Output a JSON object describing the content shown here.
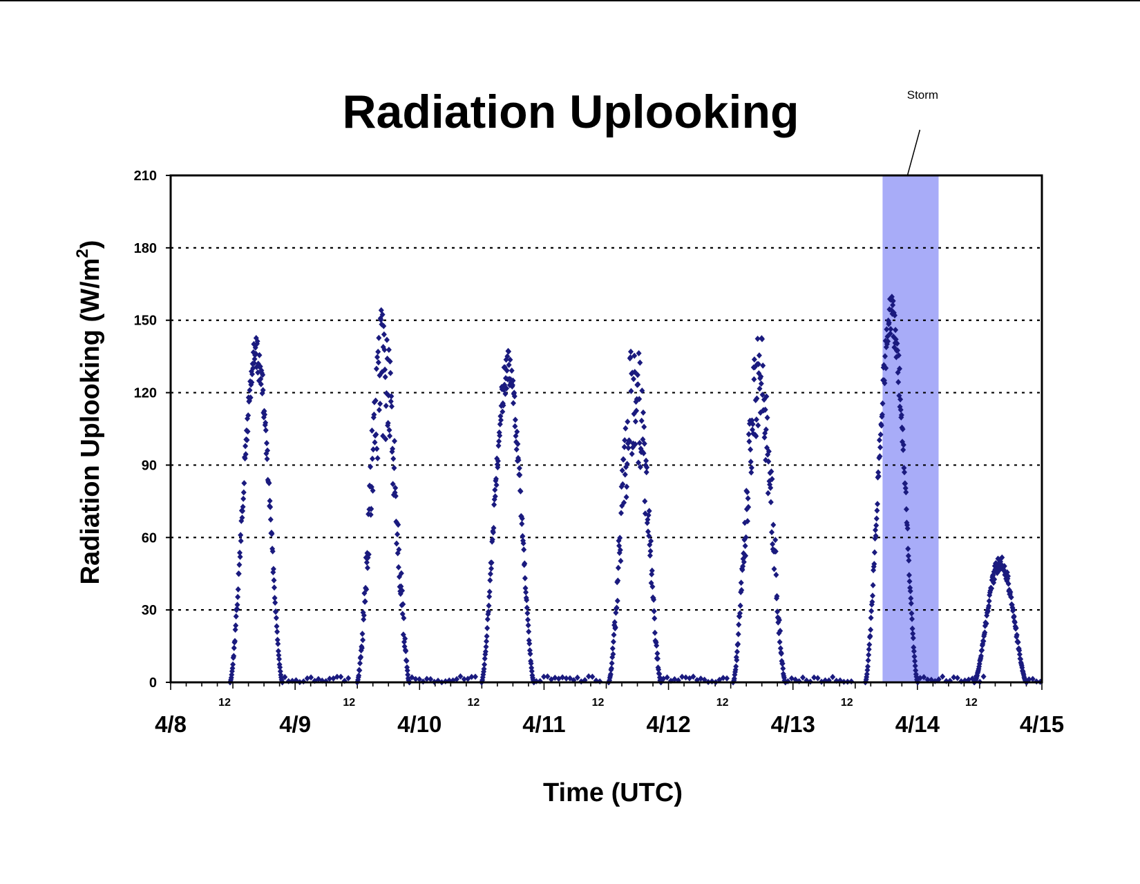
{
  "chart_data": {
    "type": "scatter",
    "title": "Radiation Uplooking",
    "xlabel": "Time (UTC)",
    "ylabel": "Radiation Uplooking (W/m2)",
    "ylabel_base": "Radiation Uplooking (W/m",
    "ylabel_sup": "2",
    "ylabel_close": ")",
    "ylim": [
      0,
      210
    ],
    "y_ticks": [
      "0",
      "30",
      "60",
      "90",
      "120",
      "150",
      "180",
      "210"
    ],
    "x_range_days": [
      "4/8",
      "4/15"
    ],
    "x_major_labels": [
      "4/8",
      "4/9",
      "4/10",
      "4/11",
      "4/12",
      "4/13",
      "4/14",
      "4/15"
    ],
    "x_minor_label": "12",
    "grid": "dotted horizontal",
    "legend": "none",
    "series_color": "#1a1a7e",
    "marker": "diamond",
    "annotation": {
      "text": "Storm",
      "shade_start_day": 5.72,
      "shade_end_day": 6.17,
      "shade_color": "#a8acf8"
    },
    "daily_peaks": [
      {
        "date": "4/8",
        "peak_hour_utc": 16.5,
        "peak_value": 144
      },
      {
        "date": "4/9",
        "peak_hour_utc": 17.0,
        "peak_value": 156
      },
      {
        "date": "4/10",
        "peak_hour_utc": 17.0,
        "peak_value": 138
      },
      {
        "date": "4/11",
        "peak_hour_utc": 17.5,
        "peak_value": 145
      },
      {
        "date": "4/12",
        "peak_hour_utc": 17.5,
        "peak_value": 146
      },
      {
        "date": "4/13",
        "peak_hour_utc": 19.0,
        "peak_value": 160
      },
      {
        "date": "4/14",
        "peak_hour_utc": 16.0,
        "peak_value": 53
      }
    ]
  }
}
